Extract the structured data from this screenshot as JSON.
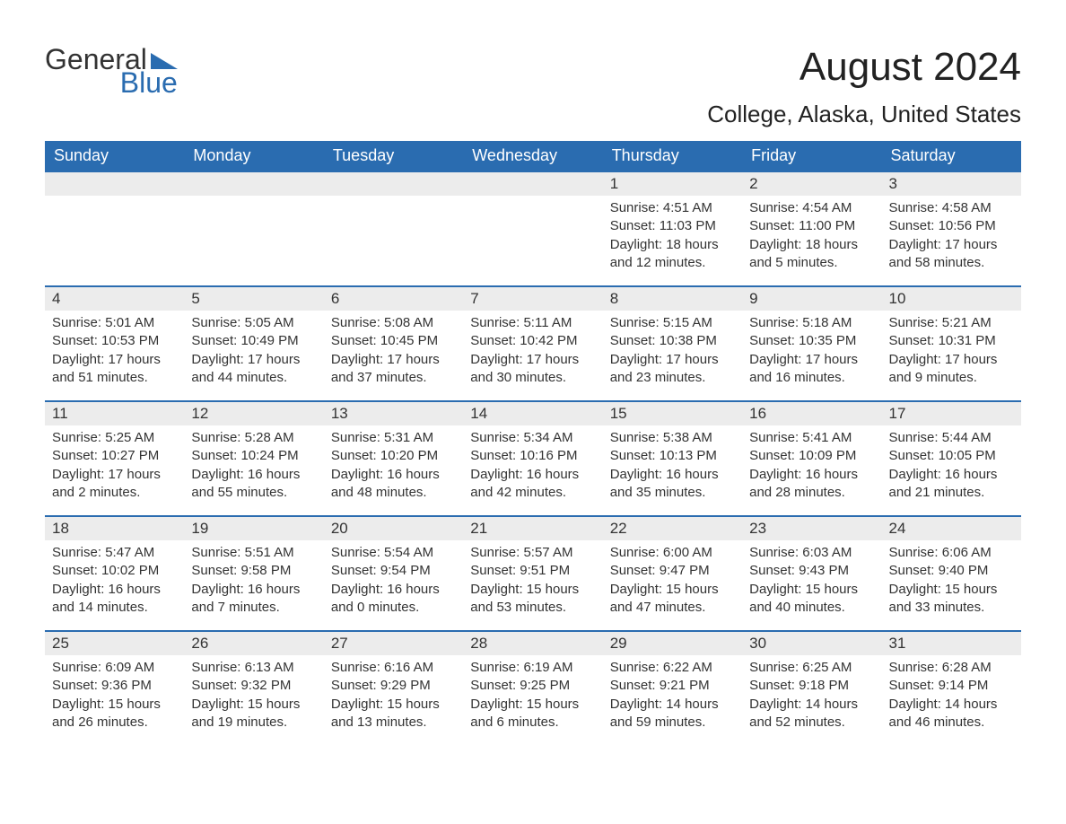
{
  "brand": {
    "general": "General",
    "blue": "Blue"
  },
  "title": "August 2024",
  "subtitle": "College, Alaska, United States",
  "colors": {
    "header_bg": "#2a6cb0",
    "header_text": "#ffffff",
    "daynum_bg": "#ececec",
    "day_border_top": "#2a6cb0",
    "body_text": "#333333",
    "page_bg": "#ffffff",
    "logo_blue": "#2a6cb0"
  },
  "day_headers": [
    "Sunday",
    "Monday",
    "Tuesday",
    "Wednesday",
    "Thursday",
    "Friday",
    "Saturday"
  ],
  "weeks": [
    [
      null,
      null,
      null,
      null,
      {
        "n": "1",
        "sr": "4:51 AM",
        "ss": "11:03 PM",
        "dl": "18 hours and 12 minutes."
      },
      {
        "n": "2",
        "sr": "4:54 AM",
        "ss": "11:00 PM",
        "dl": "18 hours and 5 minutes."
      },
      {
        "n": "3",
        "sr": "4:58 AM",
        "ss": "10:56 PM",
        "dl": "17 hours and 58 minutes."
      }
    ],
    [
      {
        "n": "4",
        "sr": "5:01 AM",
        "ss": "10:53 PM",
        "dl": "17 hours and 51 minutes."
      },
      {
        "n": "5",
        "sr": "5:05 AM",
        "ss": "10:49 PM",
        "dl": "17 hours and 44 minutes."
      },
      {
        "n": "6",
        "sr": "5:08 AM",
        "ss": "10:45 PM",
        "dl": "17 hours and 37 minutes."
      },
      {
        "n": "7",
        "sr": "5:11 AM",
        "ss": "10:42 PM",
        "dl": "17 hours and 30 minutes."
      },
      {
        "n": "8",
        "sr": "5:15 AM",
        "ss": "10:38 PM",
        "dl": "17 hours and 23 minutes."
      },
      {
        "n": "9",
        "sr": "5:18 AM",
        "ss": "10:35 PM",
        "dl": "17 hours and 16 minutes."
      },
      {
        "n": "10",
        "sr": "5:21 AM",
        "ss": "10:31 PM",
        "dl": "17 hours and 9 minutes."
      }
    ],
    [
      {
        "n": "11",
        "sr": "5:25 AM",
        "ss": "10:27 PM",
        "dl": "17 hours and 2 minutes."
      },
      {
        "n": "12",
        "sr": "5:28 AM",
        "ss": "10:24 PM",
        "dl": "16 hours and 55 minutes."
      },
      {
        "n": "13",
        "sr": "5:31 AM",
        "ss": "10:20 PM",
        "dl": "16 hours and 48 minutes."
      },
      {
        "n": "14",
        "sr": "5:34 AM",
        "ss": "10:16 PM",
        "dl": "16 hours and 42 minutes."
      },
      {
        "n": "15",
        "sr": "5:38 AM",
        "ss": "10:13 PM",
        "dl": "16 hours and 35 minutes."
      },
      {
        "n": "16",
        "sr": "5:41 AM",
        "ss": "10:09 PM",
        "dl": "16 hours and 28 minutes."
      },
      {
        "n": "17",
        "sr": "5:44 AM",
        "ss": "10:05 PM",
        "dl": "16 hours and 21 minutes."
      }
    ],
    [
      {
        "n": "18",
        "sr": "5:47 AM",
        "ss": "10:02 PM",
        "dl": "16 hours and 14 minutes."
      },
      {
        "n": "19",
        "sr": "5:51 AM",
        "ss": "9:58 PM",
        "dl": "16 hours and 7 minutes."
      },
      {
        "n": "20",
        "sr": "5:54 AM",
        "ss": "9:54 PM",
        "dl": "16 hours and 0 minutes."
      },
      {
        "n": "21",
        "sr": "5:57 AM",
        "ss": "9:51 PM",
        "dl": "15 hours and 53 minutes."
      },
      {
        "n": "22",
        "sr": "6:00 AM",
        "ss": "9:47 PM",
        "dl": "15 hours and 47 minutes."
      },
      {
        "n": "23",
        "sr": "6:03 AM",
        "ss": "9:43 PM",
        "dl": "15 hours and 40 minutes."
      },
      {
        "n": "24",
        "sr": "6:06 AM",
        "ss": "9:40 PM",
        "dl": "15 hours and 33 minutes."
      }
    ],
    [
      {
        "n": "25",
        "sr": "6:09 AM",
        "ss": "9:36 PM",
        "dl": "15 hours and 26 minutes."
      },
      {
        "n": "26",
        "sr": "6:13 AM",
        "ss": "9:32 PM",
        "dl": "15 hours and 19 minutes."
      },
      {
        "n": "27",
        "sr": "6:16 AM",
        "ss": "9:29 PM",
        "dl": "15 hours and 13 minutes."
      },
      {
        "n": "28",
        "sr": "6:19 AM",
        "ss": "9:25 PM",
        "dl": "15 hours and 6 minutes."
      },
      {
        "n": "29",
        "sr": "6:22 AM",
        "ss": "9:21 PM",
        "dl": "14 hours and 59 minutes."
      },
      {
        "n": "30",
        "sr": "6:25 AM",
        "ss": "9:18 PM",
        "dl": "14 hours and 52 minutes."
      },
      {
        "n": "31",
        "sr": "6:28 AM",
        "ss": "9:14 PM",
        "dl": "14 hours and 46 minutes."
      }
    ]
  ],
  "labels": {
    "sunrise_prefix": "Sunrise: ",
    "sunset_prefix": "Sunset: ",
    "daylight_prefix": "Daylight: "
  }
}
